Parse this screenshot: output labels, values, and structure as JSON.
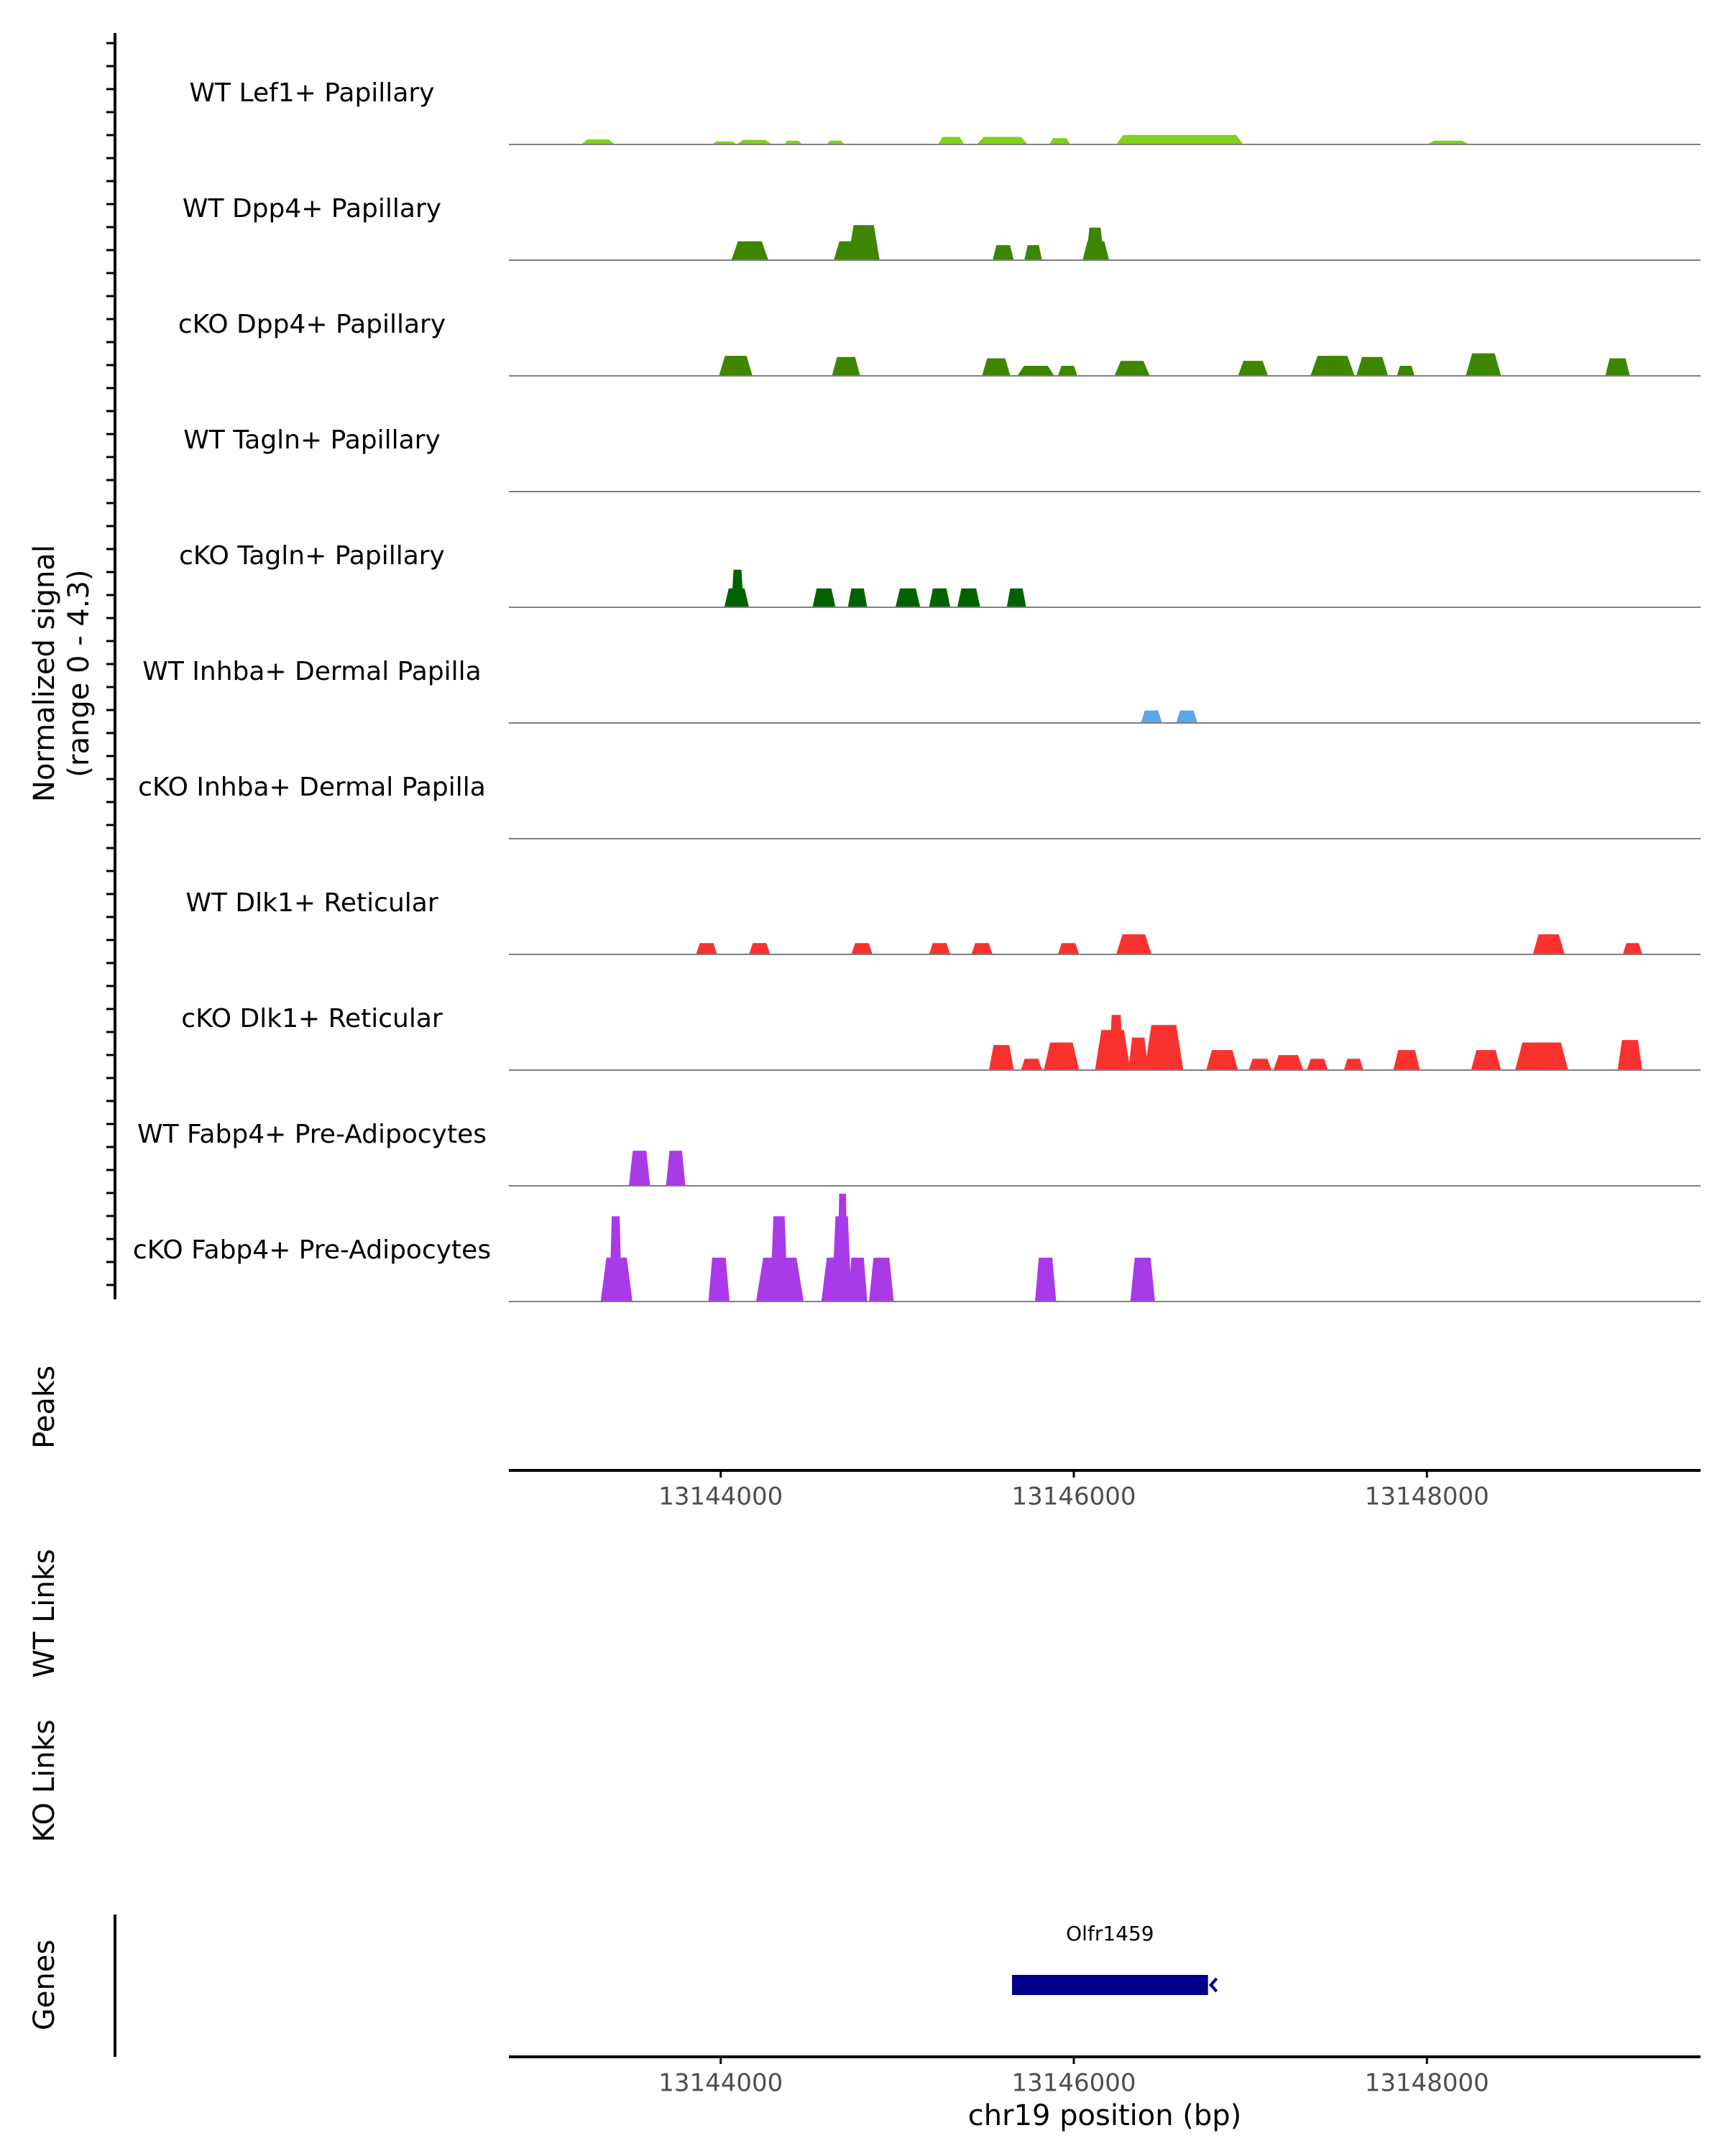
{
  "chart_data": {
    "type": "area",
    "title": "",
    "colors": {
      "lef1": "#7FD11B",
      "papillary": "#3E8600",
      "tagln": "#006300",
      "inhba": "#5BA8E5",
      "reticular": "#F9312F",
      "fabp4": "#A83AE8",
      "gene": "#00008B",
      "baseline": "#808080",
      "axis": "#000000"
    },
    "xlabel": "chr19 position (bp)",
    "xlim": [
      13142800,
      13149550
    ],
    "x_ticks": [
      13144000,
      13146000,
      13148000
    ],
    "x_tick_labels": [
      "13144000",
      "13146000",
      "13148000"
    ],
    "ylabel_line1": "Normalized signal",
    "ylabel_line2": "(range 0 - 4.3)",
    "ylim": [
      0,
      4.3
    ],
    "panel_labels": {
      "peaks": "Peaks",
      "wt_links": "WT Links",
      "ko_links": "KO Links",
      "genes": "Genes"
    },
    "tracks": [
      {
        "name": "WT Lef1+ Papillary",
        "color": "lef1",
        "peaks": [
          [
            13143210,
            13143400,
            0.2
          ],
          [
            13143950,
            13144090,
            0.12
          ],
          [
            13144090,
            13144290,
            0.18
          ],
          [
            13144360,
            13144460,
            0.15
          ],
          [
            13144600,
            13144700,
            0.15
          ],
          [
            13145230,
            13145380,
            0.3
          ],
          [
            13145450,
            13145740,
            0.3
          ],
          [
            13145860,
            13145980,
            0.25
          ],
          [
            13146240,
            13146960,
            0.38
          ],
          [
            13148000,
            13148240,
            0.15
          ]
        ]
      },
      {
        "name": "WT Dpp4+ Papillary",
        "color": "papillary",
        "peaks": [
          [
            13144060,
            13144270,
            0.75
          ],
          [
            13144640,
            13144820,
            0.75
          ],
          [
            13144720,
            13144900,
            1.4
          ],
          [
            13145540,
            13145660,
            0.6
          ],
          [
            13145720,
            13145820,
            0.6
          ],
          [
            13146050,
            13146200,
            0.75
          ],
          [
            13146070,
            13146170,
            1.3
          ]
        ]
      },
      {
        "name": "cKO Dpp4+ Papillary",
        "color": "papillary",
        "peaks": [
          [
            13143990,
            13144180,
            0.8
          ],
          [
            13144630,
            13144790,
            0.75
          ],
          [
            13145480,
            13145640,
            0.7
          ],
          [
            13145680,
            13145890,
            0.4
          ],
          [
            13145910,
            13146020,
            0.4
          ],
          [
            13146230,
            13146430,
            0.6
          ],
          [
            13146930,
            13147100,
            0.6
          ],
          [
            13147340,
            13147590,
            0.8
          ],
          [
            13147600,
            13147780,
            0.75
          ],
          [
            13147830,
            13147930,
            0.4
          ],
          [
            13148220,
            13148420,
            0.9
          ],
          [
            13149010,
            13149150,
            0.7
          ]
        ]
      },
      {
        "name": "WT Tagln+ Papillary",
        "color": "tagln",
        "peaks": []
      },
      {
        "name": "cKO Tagln+ Papillary",
        "color": "tagln",
        "peaks": [
          [
            13144020,
            13144160,
            0.75
          ],
          [
            13144060,
            13144130,
            1.5
          ],
          [
            13144520,
            13144650,
            0.75
          ],
          [
            13144720,
            13144830,
            0.75
          ],
          [
            13144990,
            13145130,
            0.75
          ],
          [
            13145180,
            13145300,
            0.75
          ],
          [
            13145340,
            13145470,
            0.75
          ],
          [
            13145620,
            13145730,
            0.75
          ]
        ]
      },
      {
        "name": "WT Inhba+ Dermal Papilla",
        "color": "inhba",
        "peaks": [
          [
            13146380,
            13146500,
            0.5
          ],
          [
            13146580,
            13146700,
            0.5
          ]
        ]
      },
      {
        "name": "cKO Inhba+ Dermal Papilla",
        "color": "inhba",
        "peaks": []
      },
      {
        "name": "WT Dlk1+ Reticular",
        "color": "reticular",
        "peaks": [
          [
            13143860,
            13143980,
            0.45
          ],
          [
            13144160,
            13144280,
            0.45
          ],
          [
            13144740,
            13144860,
            0.45
          ],
          [
            13145180,
            13145300,
            0.45
          ],
          [
            13145420,
            13145540,
            0.45
          ],
          [
            13145910,
            13146030,
            0.45
          ],
          [
            13146240,
            13146440,
            0.8
          ],
          [
            13148600,
            13148780,
            0.8
          ],
          [
            13149110,
            13149220,
            0.45
          ]
        ]
      },
      {
        "name": "cKO Dlk1+ Reticular",
        "color": "reticular",
        "peaks": [
          [
            13145520,
            13145660,
            1.0
          ],
          [
            13145700,
            13145820,
            0.45
          ],
          [
            13145830,
            13146030,
            1.1
          ],
          [
            13146120,
            13146320,
            1.6
          ],
          [
            13146200,
            13146280,
            2.2
          ],
          [
            13146310,
            13146420,
            1.3
          ],
          [
            13146400,
            13146620,
            1.8
          ],
          [
            13146750,
            13146930,
            0.8
          ],
          [
            13146990,
            13147120,
            0.45
          ],
          [
            13147130,
            13147300,
            0.6
          ],
          [
            13147320,
            13147440,
            0.45
          ],
          [
            13147530,
            13147640,
            0.45
          ],
          [
            13147810,
            13147960,
            0.8
          ],
          [
            13148250,
            13148420,
            0.8
          ],
          [
            13148500,
            13148800,
            1.1
          ],
          [
            13149080,
            13149220,
            1.2
          ]
        ]
      },
      {
        "name": "WT Fabp4+ Pre-Adipocytes",
        "color": "fabp4",
        "peaks": [
          [
            13143480,
            13143600,
            1.4
          ],
          [
            13143690,
            13143800,
            1.4
          ]
        ]
      },
      {
        "name": "cKO Fabp4+ Pre-Adipocytes",
        "color": "fabp4",
        "peaks": [
          [
            13143320,
            13143500,
            1.75
          ],
          [
            13143370,
            13143440,
            3.4
          ],
          [
            13143930,
            13144050,
            1.75
          ],
          [
            13144200,
            13144470,
            1.75
          ],
          [
            13144280,
            13144380,
            3.4
          ],
          [
            13144570,
            13144740,
            1.75
          ],
          [
            13144630,
            13144740,
            3.4
          ],
          [
            13144660,
            13144720,
            4.3
          ],
          [
            13144720,
            13144830,
            1.75
          ],
          [
            13144840,
            13144980,
            1.75
          ],
          [
            13145780,
            13145900,
            1.75
          ],
          [
            13146320,
            13146460,
            1.75
          ]
        ]
      }
    ],
    "genes": [
      {
        "name": "Olfr1459",
        "start": 13145650,
        "end": 13146760,
        "strand": "-"
      }
    ]
  }
}
